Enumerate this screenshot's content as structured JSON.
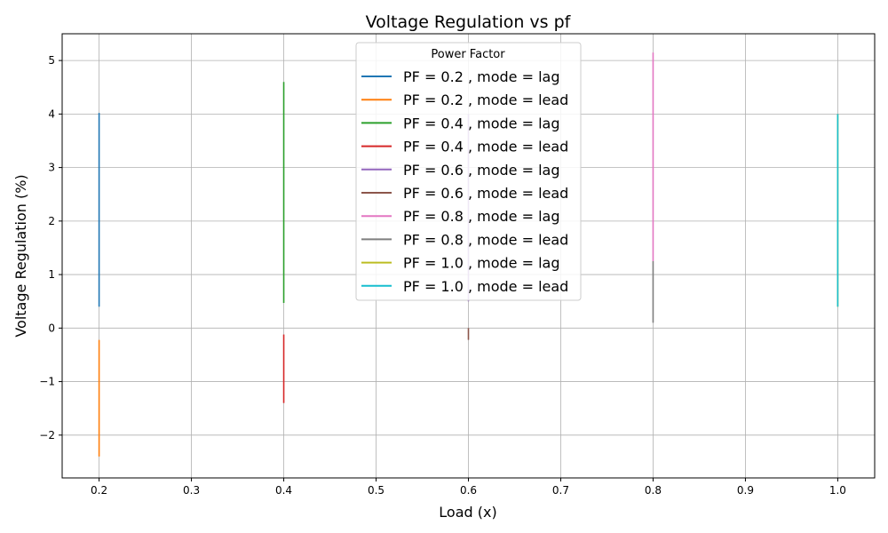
{
  "chart_data": {
    "type": "line",
    "title": "Voltage Regulation vs pf",
    "xlabel": "Load (x)",
    "ylabel": "Voltage Regulation (%)",
    "xlim": [
      0.16,
      1.04
    ],
    "ylim": [
      -2.8,
      5.5
    ],
    "xticks": [
      0.2,
      0.3,
      0.4,
      0.5,
      0.6,
      0.7,
      0.8,
      0.9,
      1.0
    ],
    "xtick_labels": [
      "0.2",
      "0.3",
      "0.4",
      "0.5",
      "0.6",
      "0.7",
      "0.8",
      "0.9",
      "1.0"
    ],
    "yticks": [
      -2,
      -1,
      0,
      1,
      2,
      3,
      4,
      5
    ],
    "ytick_labels": [
      "−2",
      "−1",
      "0",
      "1",
      "2",
      "3",
      "4",
      "5"
    ],
    "grid": true,
    "legend": {
      "title": "Power Factor",
      "placement": "top-center"
    },
    "series": [
      {
        "name": "PF = 0.2 , mode = lag",
        "color": "#1f77b4",
        "x": [
          0.2,
          0.2
        ],
        "y": [
          0.4,
          4.02
        ]
      },
      {
        "name": "PF = 0.2 , mode = lead",
        "color": "#ff7f0e",
        "x": [
          0.2,
          0.2
        ],
        "y": [
          -2.4,
          -0.22
        ]
      },
      {
        "name": "PF = 0.4 , mode = lag",
        "color": "#2ca02c",
        "x": [
          0.4,
          0.4
        ],
        "y": [
          0.47,
          4.6
        ]
      },
      {
        "name": "PF = 0.4 , mode = lead",
        "color": "#d62728",
        "x": [
          0.4,
          0.4
        ],
        "y": [
          -1.4,
          -0.12
        ]
      },
      {
        "name": "PF = 0.6 , mode = lag",
        "color": "#9467bd",
        "x": [
          0.6,
          0.6
        ],
        "y": [
          0.5,
          4.0
        ]
      },
      {
        "name": "PF = 0.6 , mode = lead",
        "color": "#8c564b",
        "x": [
          0.6,
          0.6
        ],
        "y": [
          -0.22,
          0.0
        ]
      },
      {
        "name": "PF = 0.8 , mode = lag",
        "color": "#e377c2",
        "x": [
          0.8,
          0.8
        ],
        "y": [
          1.25,
          5.15
        ]
      },
      {
        "name": "PF = 0.8 , mode = lead",
        "color": "#7f7f7f",
        "x": [
          0.8,
          0.8
        ],
        "y": [
          0.1,
          1.25
        ]
      },
      {
        "name": "PF = 1.0 , mode = lag",
        "color": "#bcbd22",
        "x": [
          1.0,
          1.0
        ],
        "y": [
          0.4,
          4.0
        ]
      },
      {
        "name": "PF = 1.0 , mode = lead",
        "color": "#17becf",
        "x": [
          1.0,
          1.0
        ],
        "y": [
          0.4,
          4.0
        ]
      }
    ]
  }
}
